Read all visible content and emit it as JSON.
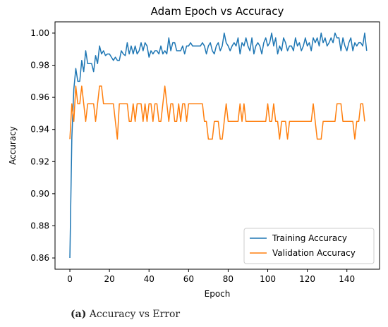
{
  "caption": {
    "label": "(a)",
    "text": "Accuracy vs Error"
  },
  "chart_data": {
    "type": "line",
    "title": "Adam Epoch vs Accuracy",
    "xlabel": "Epoch",
    "ylabel": "Accuracy",
    "xlim": [
      -7.5,
      156.5
    ],
    "ylim": [
      0.853,
      1.007
    ],
    "xticks": [
      0,
      20,
      40,
      60,
      80,
      100,
      120,
      140
    ],
    "yticks": [
      0.86,
      0.88,
      0.9,
      0.92,
      0.94,
      0.96,
      0.98,
      1.0
    ],
    "ytick_labels": [
      "0.86",
      "0.88",
      "0.90",
      "0.92",
      "0.94",
      "0.96",
      "0.98",
      "1.00"
    ],
    "grid": false,
    "legend_position": "lower-right",
    "series": [
      {
        "name": "Training Accuracy",
        "color": "#1f77b4",
        "values": [
          0.86,
          0.935,
          0.965,
          0.978,
          0.97,
          0.97,
          0.983,
          0.976,
          0.989,
          0.981,
          0.981,
          0.981,
          0.976,
          0.986,
          0.981,
          0.992,
          0.987,
          0.989,
          0.986,
          0.987,
          0.987,
          0.985,
          0.983,
          0.985,
          0.983,
          0.983,
          0.989,
          0.987,
          0.986,
          0.994,
          0.987,
          0.992,
          0.987,
          0.992,
          0.987,
          0.989,
          0.994,
          0.989,
          0.994,
          0.992,
          0.985,
          0.989,
          0.987,
          0.989,
          0.989,
          0.987,
          0.992,
          0.987,
          0.989,
          0.987,
          0.997,
          0.989,
          0.994,
          0.994,
          0.989,
          0.989,
          0.989,
          0.992,
          0.987,
          0.992,
          0.992,
          0.994,
          0.992,
          0.992,
          0.992,
          0.992,
          0.992,
          0.994,
          0.992,
          0.987,
          0.992,
          0.994,
          0.989,
          0.987,
          0.992,
          0.994,
          0.989,
          0.992,
          1.0,
          0.994,
          0.992,
          0.989,
          0.992,
          0.994,
          0.992,
          0.997,
          0.987,
          0.994,
          0.992,
          0.997,
          0.992,
          0.989,
          0.997,
          0.987,
          0.992,
          0.994,
          0.992,
          0.987,
          0.994,
          0.997,
          0.992,
          0.994,
          1.0,
          0.992,
          0.997,
          0.987,
          0.992,
          0.989,
          0.997,
          0.994,
          0.989,
          0.992,
          0.992,
          0.989,
          0.997,
          0.992,
          0.994,
          0.989,
          0.992,
          0.997,
          0.992,
          0.994,
          0.989,
          0.997,
          0.994,
          0.997,
          0.992,
          1.0,
          0.994,
          0.997,
          0.992,
          0.994,
          0.997,
          0.994,
          1.0,
          0.997,
          0.997,
          0.989,
          0.997,
          0.992,
          0.989,
          0.994,
          0.997,
          0.989,
          0.994,
          0.992,
          0.994,
          0.994,
          0.992,
          1.0,
          0.989
        ]
      },
      {
        "name": "Validation Accuracy",
        "color": "#ff7f0e",
        "values": [
          0.934,
          0.956,
          0.945,
          0.967,
          0.956,
          0.956,
          0.967,
          0.956,
          0.945,
          0.956,
          0.956,
          0.956,
          0.956,
          0.945,
          0.956,
          0.967,
          0.967,
          0.956,
          0.956,
          0.956,
          0.956,
          0.956,
          0.956,
          0.945,
          0.934,
          0.956,
          0.956,
          0.956,
          0.956,
          0.956,
          0.945,
          0.945,
          0.956,
          0.945,
          0.956,
          0.956,
          0.956,
          0.945,
          0.956,
          0.945,
          0.956,
          0.956,
          0.945,
          0.956,
          0.956,
          0.945,
          0.945,
          0.956,
          0.967,
          0.956,
          0.945,
          0.956,
          0.956,
          0.945,
          0.945,
          0.956,
          0.945,
          0.956,
          0.956,
          0.945,
          0.956,
          0.956,
          0.956,
          0.956,
          0.956,
          0.956,
          0.956,
          0.956,
          0.945,
          0.945,
          0.934,
          0.934,
          0.934,
          0.945,
          0.945,
          0.945,
          0.934,
          0.934,
          0.945,
          0.956,
          0.945,
          0.945,
          0.945,
          0.945,
          0.945,
          0.945,
          0.956,
          0.945,
          0.956,
          0.945,
          0.945,
          0.945,
          0.945,
          0.945,
          0.945,
          0.945,
          0.945,
          0.945,
          0.945,
          0.945,
          0.956,
          0.945,
          0.945,
          0.956,
          0.945,
          0.945,
          0.934,
          0.945,
          0.945,
          0.945,
          0.934,
          0.945,
          0.945,
          0.945,
          0.945,
          0.945,
          0.945,
          0.945,
          0.945,
          0.945,
          0.945,
          0.945,
          0.945,
          0.956,
          0.945,
          0.934,
          0.934,
          0.934,
          0.945,
          0.945,
          0.945,
          0.945,
          0.945,
          0.945,
          0.945,
          0.956,
          0.956,
          0.956,
          0.945,
          0.945,
          0.945,
          0.945,
          0.945,
          0.945,
          0.934,
          0.945,
          0.945,
          0.956,
          0.956,
          0.945
        ]
      }
    ]
  }
}
